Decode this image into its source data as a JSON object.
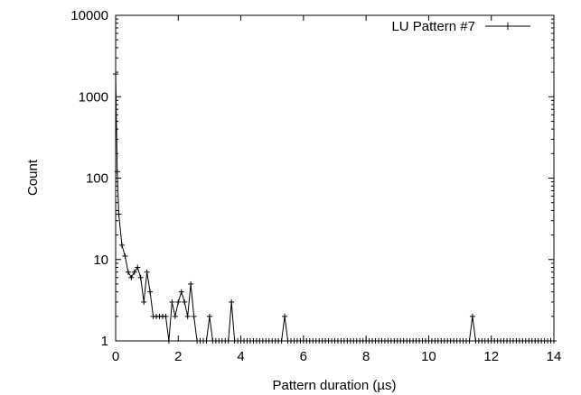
{
  "chart_data": {
    "type": "line",
    "title": "",
    "xlabel": "Pattern duration (µs)",
    "ylabel": "Count",
    "xlim": [
      0,
      14
    ],
    "ylim": [
      1,
      10000
    ],
    "yscale": "log",
    "grid": false,
    "legend_position": "top-right",
    "x_ticks": [
      0,
      2,
      4,
      6,
      8,
      10,
      12,
      14
    ],
    "x_tick_labels": [
      "0",
      "2",
      "4",
      "6",
      "8",
      "10",
      "12",
      "14"
    ],
    "y_ticks": [
      1,
      10,
      100,
      1000,
      10000
    ],
    "y_tick_labels": [
      "1",
      "10",
      "100",
      "1000",
      "10000"
    ],
    "series": [
      {
        "name": "LU Pattern #7",
        "color": "#000000",
        "marker": "plus",
        "x": [
          0.0,
          0.05,
          0.1,
          0.2,
          0.3,
          0.4,
          0.5,
          0.6,
          0.7,
          0.8,
          0.9,
          1.0,
          1.1,
          1.2,
          1.3,
          1.4,
          1.5,
          1.6,
          1.7,
          1.8,
          1.9,
          2.0,
          2.1,
          2.2,
          2.3,
          2.4,
          2.5,
          2.6,
          2.7,
          2.8,
          2.9,
          3.0,
          3.1,
          3.2,
          3.3,
          3.4,
          3.5,
          3.6,
          3.7,
          3.8,
          3.9,
          4.0,
          4.1,
          4.2,
          4.3,
          4.4,
          4.5,
          4.6,
          4.7,
          4.8,
          4.9,
          5.0,
          5.1,
          5.2,
          5.3,
          5.4,
          5.5,
          5.6,
          5.7,
          5.8,
          5.9,
          6.0,
          6.1,
          6.2,
          6.3,
          6.4,
          6.5,
          6.6,
          6.7,
          6.8,
          6.9,
          7.0,
          7.1,
          7.2,
          7.3,
          7.4,
          7.5,
          7.6,
          7.7,
          7.8,
          7.9,
          8.0,
          8.1,
          8.2,
          8.3,
          8.4,
          8.5,
          8.6,
          8.7,
          8.8,
          8.9,
          9.0,
          9.1,
          9.2,
          9.3,
          9.4,
          9.5,
          9.6,
          9.7,
          9.8,
          9.9,
          10.0,
          10.1,
          10.2,
          10.3,
          10.4,
          10.5,
          10.6,
          10.7,
          10.8,
          10.9,
          11.0,
          11.1,
          11.2,
          11.3,
          11.4,
          11.5,
          11.6,
          11.7,
          11.8,
          11.9,
          12.0,
          12.1,
          12.2,
          12.3,
          12.4,
          12.5,
          12.6,
          12.7,
          12.8,
          12.9,
          13.0,
          13.1,
          13.2,
          13.3,
          13.4,
          13.5,
          13.6,
          13.7,
          13.8,
          13.9,
          14.0
        ],
        "y": [
          1900,
          120,
          36,
          15,
          11,
          7,
          6,
          7,
          8,
          6,
          3,
          7,
          4,
          2,
          2,
          2,
          2,
          2,
          1,
          3,
          2,
          3,
          4,
          3,
          2,
          5,
          2,
          1,
          1,
          1,
          1,
          2,
          1,
          1,
          1,
          1,
          1,
          1,
          3,
          1,
          1,
          1,
          1,
          1,
          1,
          1,
          1,
          1,
          1,
          1,
          1,
          1,
          1,
          1,
          1,
          2,
          1,
          1,
          1,
          1,
          1,
          1,
          1,
          1,
          1,
          1,
          1,
          1,
          1,
          1,
          1,
          1,
          1,
          1,
          1,
          1,
          1,
          1,
          1,
          1,
          1,
          1,
          1,
          1,
          1,
          1,
          1,
          1,
          1,
          1,
          1,
          1,
          1,
          1,
          1,
          1,
          1,
          1,
          1,
          1,
          1,
          1,
          1,
          1,
          1,
          1,
          1,
          1,
          1,
          1,
          1,
          1,
          1,
          1,
          1,
          2,
          1,
          1,
          1,
          1,
          1,
          1,
          1,
          1,
          1,
          1,
          1,
          1,
          1,
          1,
          1,
          1,
          1,
          1,
          1,
          1,
          1,
          1,
          1,
          1,
          1,
          1
        ]
      }
    ]
  }
}
